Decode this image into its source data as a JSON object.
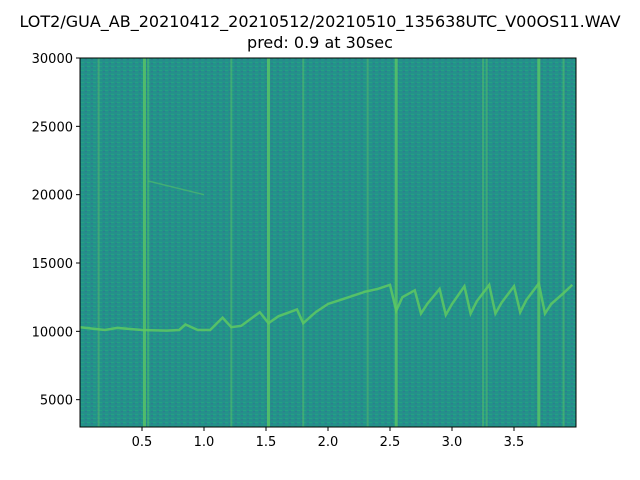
{
  "chart_data": {
    "type": "heatmap",
    "subtype": "spectrogram",
    "title": "LOT2/GUA_AB_20210412_20210512/20210510_135638UTC_V00OS11.WAV",
    "subtitle": "pred: 0.9 at 30sec",
    "xlabel": "",
    "ylabel": "",
    "xlim": [
      0,
      4.0
    ],
    "ylim": [
      3000,
      30000
    ],
    "xticks": [
      "0.5",
      "1.0",
      "1.5",
      "2.0",
      "2.5",
      "3.0",
      "3.5"
    ],
    "yticks": [
      "5000",
      "10000",
      "15000",
      "20000",
      "25000",
      "30000"
    ],
    "colormap": "viridis",
    "background_color": "#23928a",
    "feature_color": "#5ec962",
    "grid": false,
    "whistle_contour": {
      "t": [
        0.0,
        0.2,
        0.3,
        0.5,
        0.7,
        0.8,
        0.85,
        0.95,
        1.05,
        1.15,
        1.22,
        1.3,
        1.45,
        1.52,
        1.6,
        1.75,
        1.8,
        1.9,
        2.0,
        2.1,
        2.2,
        2.3,
        2.4,
        2.5,
        2.55,
        2.6,
        2.7,
        2.75,
        2.8,
        2.9,
        2.95,
        3.0,
        3.1,
        3.15,
        3.2,
        3.3,
        3.35,
        3.4,
        3.5,
        3.55,
        3.6,
        3.7,
        3.75,
        3.8,
        3.9,
        3.97
      ],
      "freq": [
        10300,
        10100,
        10250,
        10100,
        10050,
        10100,
        10500,
        10100,
        10100,
        11000,
        10300,
        10400,
        11400,
        10600,
        11100,
        11600,
        10600,
        11400,
        12000,
        12300,
        12600,
        12900,
        13100,
        13400,
        11500,
        12500,
        13000,
        11300,
        12000,
        13100,
        11200,
        12000,
        13300,
        11300,
        12200,
        13400,
        11300,
        12100,
        13300,
        11400,
        12300,
        13500,
        11300,
        12000,
        12800,
        13400
      ]
    },
    "clicks_t": [
      0.15,
      0.52,
      0.55,
      1.22,
      1.52,
      1.8,
      2.32,
      2.55,
      3.25,
      3.28,
      3.7,
      3.9
    ],
    "faint_trace": {
      "t": [
        0.55,
        1.0
      ],
      "freq": [
        21000,
        20000
      ]
    }
  }
}
